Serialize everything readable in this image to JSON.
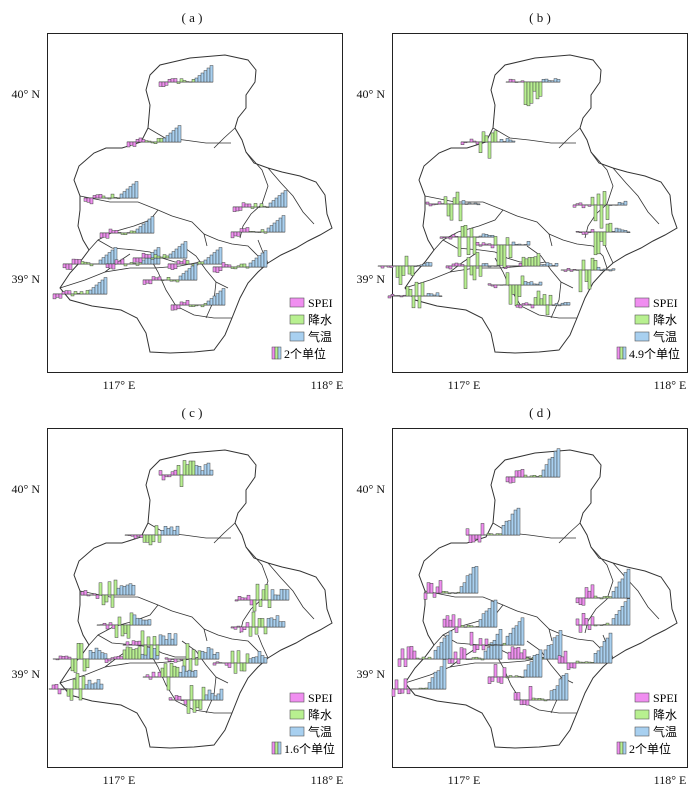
{
  "panels": [
    {
      "label": "( a )",
      "lat_labels": [
        "40° N",
        "39° N"
      ],
      "lon_labels": [
        "117° E",
        "118° E"
      ],
      "legend": {
        "spei": "SPEI",
        "precip": "降水",
        "temp": "气温",
        "scale": "2个单位"
      },
      "style": "a"
    },
    {
      "label": "( b )",
      "lat_labels": [
        "40° N",
        "39° N"
      ],
      "lon_labels": [
        "117° E",
        "118° E"
      ],
      "legend": {
        "spei": "SPEI",
        "precip": "降水",
        "temp": "气温",
        "scale": "4.9个单位"
      },
      "style": "b"
    },
    {
      "label": "( c )",
      "lat_labels": [
        "40° N",
        "39° N"
      ],
      "lon_labels": [
        "117° E",
        "118° E"
      ],
      "legend": {
        "spei": "SPEI",
        "precip": "降水",
        "temp": "气温",
        "scale": "1.6个单位"
      },
      "style": "c"
    },
    {
      "label": "( d )",
      "lat_labels": [
        "40° N",
        "39° N"
      ],
      "lon_labels": [
        "117° E",
        "118° E"
      ],
      "legend": {
        "spei": "SPEI",
        "precip": "降水",
        "temp": "气温",
        "scale": "2个单位"
      },
      "style": "d"
    }
  ],
  "colors": {
    "spei": "#f08ef0",
    "precip": "#b8f090",
    "temp": "#a8d0f0",
    "outline": "#333333"
  }
}
